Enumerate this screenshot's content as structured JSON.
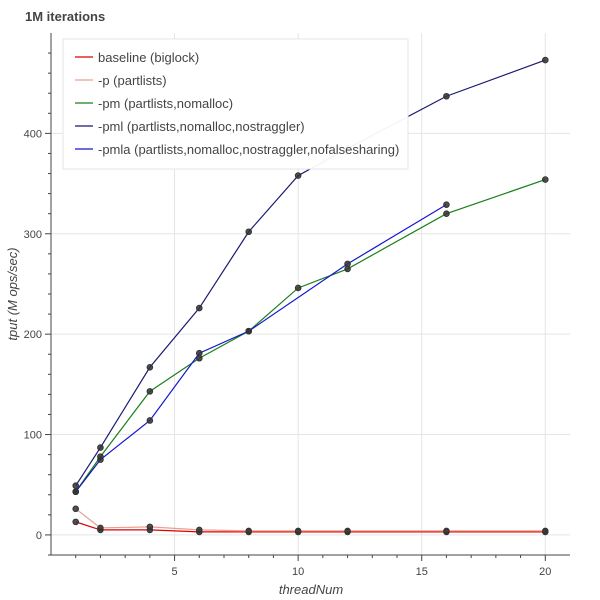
{
  "chart_data": {
    "type": "line",
    "title": "1M iterations",
    "xlabel": "threadNum",
    "ylabel": "tput (M ops/sec)",
    "xlim": [
      0,
      21
    ],
    "ylim": [
      -20,
      500
    ],
    "xticks": [
      5,
      10,
      15,
      20
    ],
    "yticks": [
      0,
      100,
      200,
      300,
      400
    ],
    "grid": true,
    "legend_position": "top-left",
    "series": [
      {
        "name": "baseline (biglock)",
        "color": "#dd0000",
        "x": [
          1,
          2,
          4,
          6,
          8,
          10,
          12,
          16,
          20
        ],
        "y": [
          13,
          5,
          5,
          3,
          3,
          3,
          3,
          3,
          3
        ]
      },
      {
        "name": "-p (partlists)",
        "color": "#e8a090",
        "x": [
          1,
          2,
          4,
          6,
          8,
          10,
          12,
          16,
          20
        ],
        "y": [
          26,
          7,
          8,
          5,
          4,
          4,
          4,
          4,
          4
        ]
      },
      {
        "name": "-pm (partlists,nomalloc)",
        "color": "#1a7f1a",
        "x": [
          1,
          2,
          4,
          6,
          8,
          10,
          12,
          16,
          20
        ],
        "y": [
          43,
          78,
          143,
          176,
          203,
          246,
          265,
          320,
          354
        ]
      },
      {
        "name": "-pml (partlists,nomalloc,nostraggler)",
        "color": "#191970",
        "x": [
          1,
          2,
          4,
          6,
          8,
          10,
          12,
          16,
          20
        ],
        "y": [
          49,
          87,
          167,
          226,
          302,
          358,
          385,
          437,
          473
        ]
      },
      {
        "name": "-pmla (partlists,nomalloc,nostraggler,nofalsesharing)",
        "color": "#1515d0",
        "x": [
          1,
          2,
          4,
          6,
          8,
          12,
          16
        ],
        "y": [
          43,
          75,
          114,
          181,
          203,
          270,
          329
        ]
      }
    ]
  }
}
